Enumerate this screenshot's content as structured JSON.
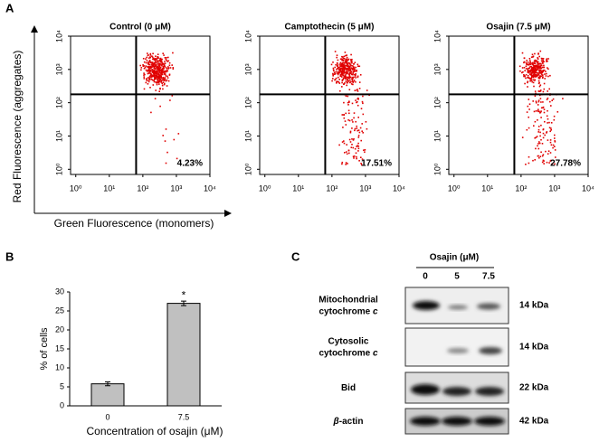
{
  "panels": [
    "A",
    "B",
    "C"
  ],
  "panel_a": {
    "x_label": "Green Fluorescence (monomers)",
    "y_label": "Red Fluorescence (aggregates)"
  },
  "chart_data": [
    {
      "type": "scatter",
      "title": "Control (0 μM)",
      "log_x": true,
      "log_y": true,
      "color": "#e00000",
      "xlim": [
        0.7,
        10000
      ],
      "ylim": [
        0.7,
        10000
      ],
      "xticks": [
        {
          "value": 1,
          "label": "10⁰"
        },
        {
          "value": 10,
          "label": "10¹"
        },
        {
          "value": 100,
          "label": "10²"
        },
        {
          "value": 1000,
          "label": "10³"
        },
        {
          "value": 10000,
          "label": "10⁴"
        }
      ],
      "yticks": [
        {
          "value": 1,
          "label": "10⁰"
        },
        {
          "value": 10,
          "label": "10¹"
        },
        {
          "value": 100,
          "label": "10²"
        },
        {
          "value": 1000,
          "label": "10³"
        },
        {
          "value": 10000,
          "label": "10⁴"
        }
      ],
      "quadrants": {
        "x": 63,
        "y": 178
      },
      "annotation": {
        "value": 4.23,
        "label": "4.23%"
      }
    },
    {
      "type": "scatter",
      "title": "Camptothecin (5 μM)",
      "log_x": true,
      "log_y": true,
      "color": "#e00000",
      "xlim": [
        0.7,
        10000
      ],
      "ylim": [
        0.7,
        10000
      ],
      "xticks": [
        {
          "value": 1,
          "label": "10⁰"
        },
        {
          "value": 10,
          "label": "10¹"
        },
        {
          "value": 100,
          "label": "10²"
        },
        {
          "value": 1000,
          "label": "10³"
        },
        {
          "value": 10000,
          "label": "10⁴"
        }
      ],
      "yticks": [
        {
          "value": 1,
          "label": "10⁰"
        },
        {
          "value": 10,
          "label": "10¹"
        },
        {
          "value": 100,
          "label": "10²"
        },
        {
          "value": 1000,
          "label": "10³"
        },
        {
          "value": 10000,
          "label": "10⁴"
        }
      ],
      "quadrants": {
        "x": 63,
        "y": 178
      },
      "annotation": {
        "value": 17.51,
        "label": "17.51%"
      }
    },
    {
      "type": "scatter",
      "title": "Osajin (7.5 μM)",
      "log_x": true,
      "log_y": true,
      "color": "#e00000",
      "xlim": [
        0.7,
        10000
      ],
      "ylim": [
        0.7,
        10000
      ],
      "xticks": [
        {
          "value": 1,
          "label": "10⁰"
        },
        {
          "value": 10,
          "label": "10¹"
        },
        {
          "value": 100,
          "label": "10²"
        },
        {
          "value": 1000,
          "label": "10³"
        },
        {
          "value": 10000,
          "label": "10⁴"
        }
      ],
      "yticks": [
        {
          "value": 1,
          "label": "10⁰"
        },
        {
          "value": 10,
          "label": "10¹"
        },
        {
          "value": 100,
          "label": "10²"
        },
        {
          "value": 1000,
          "label": "10³"
        },
        {
          "value": 10000,
          "label": "10⁴"
        }
      ],
      "quadrants": {
        "x": 63,
        "y": 178
      },
      "annotation": {
        "value": 27.78,
        "label": "27.78%"
      }
    },
    {
      "type": "bar",
      "categories": [
        "0",
        "7.5"
      ],
      "values": [
        5.8,
        27
      ],
      "errors": [
        0.5,
        0.6
      ],
      "value_annotations": [
        null,
        "*"
      ],
      "color": "#c0c0c0",
      "ylim": [
        0,
        30
      ],
      "yticks": [
        0,
        5,
        10,
        15,
        20,
        25,
        30
      ],
      "x_label": "Concentration of osajin (μM)",
      "y_label": "% of cells"
    }
  ],
  "blot": {
    "header": "Osajin (μM)",
    "lanes": [
      "0",
      "5",
      "7.5"
    ],
    "rows": [
      {
        "label": [
          "Mitochondrial",
          "cytochrome"
        ],
        "italic": "c",
        "size": "14 kDa"
      },
      {
        "label": [
          "Cytosolic",
          "cytochrome"
        ],
        "italic": "c",
        "size": "14 kDa"
      },
      {
        "label": [
          "Bid"
        ],
        "size": "22 kDa"
      },
      {
        "label": [
          "-actin"
        ],
        "italic_prefix": "β",
        "size": "42 kDa"
      }
    ]
  }
}
